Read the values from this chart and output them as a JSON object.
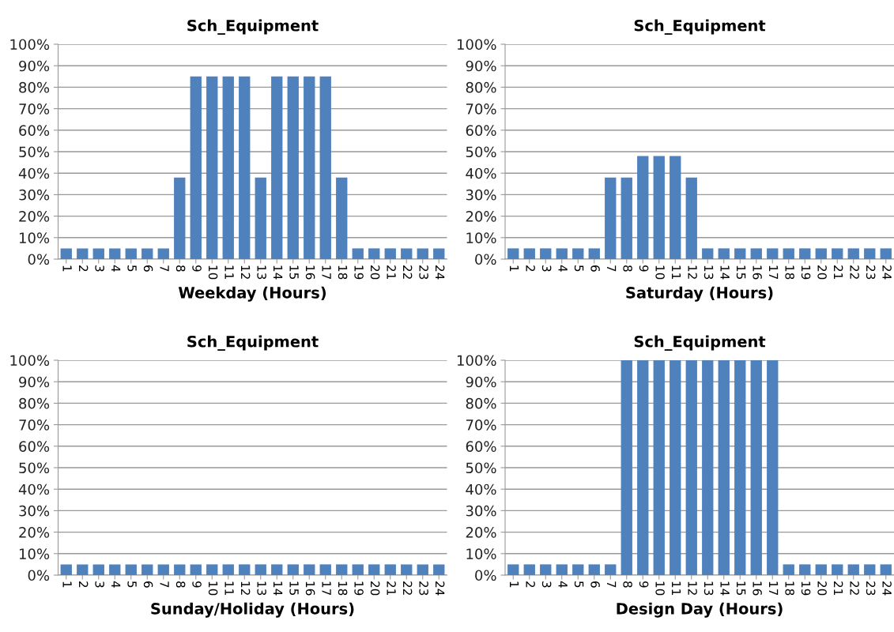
{
  "chart_data": [
    {
      "type": "bar",
      "title": "Sch_Equipment",
      "xlabel": "Weekday (Hours)",
      "categories": [
        "1",
        "2",
        "3",
        "4",
        "5",
        "6",
        "7",
        "8",
        "9",
        "10",
        "11",
        "12",
        "13",
        "14",
        "15",
        "16",
        "17",
        "18",
        "19",
        "20",
        "21",
        "22",
        "23",
        "24"
      ],
      "values": [
        5,
        5,
        5,
        5,
        5,
        5,
        5,
        38,
        85,
        85,
        85,
        85,
        38,
        85,
        85,
        85,
        85,
        38,
        5,
        5,
        5,
        5,
        5,
        5
      ],
      "color": "#4f81bd",
      "ylim": [
        0,
        100
      ],
      "yticks": [
        {
          "value": 0,
          "label": "0%"
        },
        {
          "value": 10,
          "label": "10%"
        },
        {
          "value": 20,
          "label": "20%"
        },
        {
          "value": 30,
          "label": "30%"
        },
        {
          "value": 40,
          "label": "40%"
        },
        {
          "value": 50,
          "label": "50%"
        },
        {
          "value": 60,
          "label": "60%"
        },
        {
          "value": 70,
          "label": "70%"
        },
        {
          "value": 80,
          "label": "80%"
        },
        {
          "value": 90,
          "label": "90%"
        },
        {
          "value": 100,
          "label": "100%"
        }
      ],
      "grid": "y"
    },
    {
      "type": "bar",
      "title": "Sch_Equipment",
      "xlabel": "Saturday (Hours)",
      "categories": [
        "1",
        "2",
        "3",
        "4",
        "5",
        "6",
        "7",
        "8",
        "9",
        "10",
        "11",
        "12",
        "13",
        "14",
        "15",
        "16",
        "17",
        "18",
        "19",
        "20",
        "21",
        "22",
        "23",
        "24"
      ],
      "values": [
        5,
        5,
        5,
        5,
        5,
        5,
        38,
        38,
        48,
        48,
        48,
        38,
        5,
        5,
        5,
        5,
        5,
        5,
        5,
        5,
        5,
        5,
        5,
        5
      ],
      "color": "#4f81bd",
      "ylim": [
        0,
        100
      ],
      "yticks": [
        {
          "value": 0,
          "label": "0%"
        },
        {
          "value": 10,
          "label": "10%"
        },
        {
          "value": 20,
          "label": "20%"
        },
        {
          "value": 30,
          "label": "30%"
        },
        {
          "value": 40,
          "label": "40%"
        },
        {
          "value": 50,
          "label": "50%"
        },
        {
          "value": 60,
          "label": "60%"
        },
        {
          "value": 70,
          "label": "70%"
        },
        {
          "value": 80,
          "label": "80%"
        },
        {
          "value": 90,
          "label": "90%"
        },
        {
          "value": 100,
          "label": "100%"
        }
      ],
      "grid": "y"
    },
    {
      "type": "bar",
      "title": "Sch_Equipment",
      "xlabel": "Sunday/Holiday (Hours)",
      "categories": [
        "1",
        "2",
        "3",
        "4",
        "5",
        "6",
        "7",
        "8",
        "9",
        "10",
        "11",
        "12",
        "13",
        "14",
        "15",
        "16",
        "17",
        "18",
        "19",
        "20",
        "21",
        "22",
        "23",
        "24"
      ],
      "values": [
        5,
        5,
        5,
        5,
        5,
        5,
        5,
        5,
        5,
        5,
        5,
        5,
        5,
        5,
        5,
        5,
        5,
        5,
        5,
        5,
        5,
        5,
        5,
        5
      ],
      "color": "#4f81bd",
      "ylim": [
        0,
        100
      ],
      "yticks": [
        {
          "value": 0,
          "label": "0%"
        },
        {
          "value": 10,
          "label": "10%"
        },
        {
          "value": 20,
          "label": "20%"
        },
        {
          "value": 30,
          "label": "30%"
        },
        {
          "value": 40,
          "label": "40%"
        },
        {
          "value": 50,
          "label": "50%"
        },
        {
          "value": 60,
          "label": "60%"
        },
        {
          "value": 70,
          "label": "70%"
        },
        {
          "value": 80,
          "label": "80%"
        },
        {
          "value": 90,
          "label": "90%"
        },
        {
          "value": 100,
          "label": "100%"
        }
      ],
      "grid": "y"
    },
    {
      "type": "bar",
      "title": "Sch_Equipment",
      "xlabel": "Design Day (Hours)",
      "categories": [
        "1",
        "2",
        "3",
        "4",
        "5",
        "6",
        "7",
        "8",
        "9",
        "10",
        "11",
        "12",
        "13",
        "14",
        "15",
        "16",
        "17",
        "18",
        "19",
        "20",
        "21",
        "22",
        "23",
        "24"
      ],
      "values": [
        5,
        5,
        5,
        5,
        5,
        5,
        5,
        100,
        100,
        100,
        100,
        100,
        100,
        100,
        100,
        100,
        100,
        5,
        5,
        5,
        5,
        5,
        5,
        5
      ],
      "color": "#4f81bd",
      "ylim": [
        0,
        100
      ],
      "yticks": [
        {
          "value": 0,
          "label": "0%"
        },
        {
          "value": 10,
          "label": "10%"
        },
        {
          "value": 20,
          "label": "20%"
        },
        {
          "value": 30,
          "label": "30%"
        },
        {
          "value": 40,
          "label": "40%"
        },
        {
          "value": 50,
          "label": "50%"
        },
        {
          "value": 60,
          "label": "60%"
        },
        {
          "value": 70,
          "label": "70%"
        },
        {
          "value": 80,
          "label": "80%"
        },
        {
          "value": 90,
          "label": "90%"
        },
        {
          "value": 100,
          "label": "100%"
        }
      ],
      "grid": "y"
    }
  ]
}
